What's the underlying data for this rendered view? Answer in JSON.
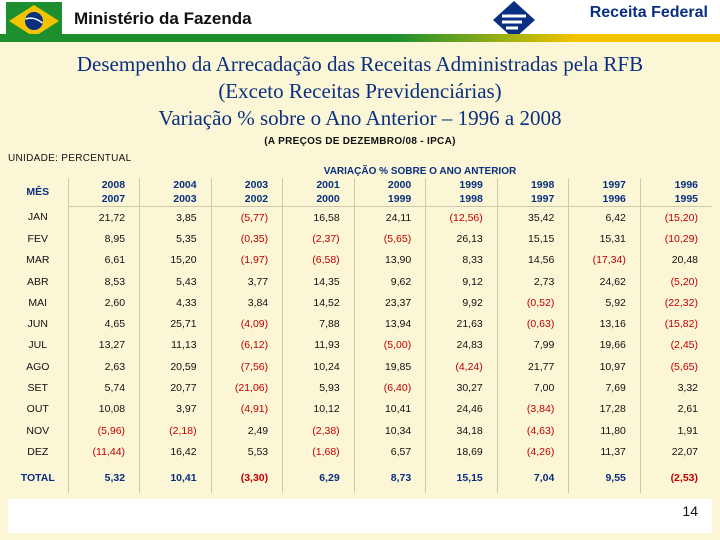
{
  "header": {
    "left_title": "Ministério da Fazenda",
    "right_title": "Receita Federal",
    "colors": {
      "green": "#1d8f2f",
      "yellow": "#f2c400",
      "blue": "#0a2f80"
    }
  },
  "title": {
    "line1": "Desempenho da Arrecadação das Receitas Administradas pela RFB",
    "line2": "(Exceto Receitas Previdenciárias)",
    "line3": "Variação % sobre o Ano Anterior – 1996 a 2008"
  },
  "note": "(A PREÇOS DE DEZEMBRO/08 - IPCA)",
  "unit_label": "UNIDADE: PERCENTUAL",
  "table": {
    "variation_header": "VARIAÇÃO % SOBRE O ANO ANTERIOR",
    "month_header": "MÊS",
    "columns": [
      {
        "top": "2008",
        "bottom": "2007"
      },
      {
        "top": "2004",
        "bottom": "2003"
      },
      {
        "top": "2003",
        "bottom": "2002"
      },
      {
        "top": "2001",
        "bottom": "2000"
      },
      {
        "top": "2000",
        "bottom": "1999"
      },
      {
        "top": "1999",
        "bottom": "1998"
      },
      {
        "top": "1998",
        "bottom": "1997"
      },
      {
        "top": "1997",
        "bottom": "1996"
      },
      {
        "top": "1996",
        "bottom": "1995"
      }
    ],
    "rows": [
      {
        "month": "JAN",
        "values": [
          "21,72",
          "3,85",
          "(5,77)",
          "16,58",
          "24,11",
          "(12,56)",
          "35,42",
          "6,42",
          "(15,20)"
        ]
      },
      {
        "month": "FEV",
        "values": [
          "8,95",
          "5,35",
          "(0,35)",
          "(2,37)",
          "(5,65)",
          "26,13",
          "15,15",
          "15,31",
          "(10,29)"
        ]
      },
      {
        "month": "MAR",
        "values": [
          "6,61",
          "15,20",
          "(1,97)",
          "(6,58)",
          "13,90",
          "8,33",
          "14,56",
          "(17,34)",
          "20,48"
        ]
      },
      {
        "month": "ABR",
        "values": [
          "8,53",
          "5,43",
          "3,77",
          "14,35",
          "9,62",
          "9,12",
          "2,73",
          "24,62",
          "(5,20)"
        ]
      },
      {
        "month": "MAI",
        "values": [
          "2,60",
          "4,33",
          "3,84",
          "14,52",
          "23,37",
          "9,92",
          "(0,52)",
          "5,92",
          "(22,32)"
        ]
      },
      {
        "month": "JUN",
        "values": [
          "4,65",
          "25,71",
          "(4,09)",
          "7,88",
          "13,94",
          "21,63",
          "(0,63)",
          "13,16",
          "(15,82)"
        ]
      },
      {
        "month": "JUL",
        "values": [
          "13,27",
          "11,13",
          "(6,12)",
          "11,93",
          "(5,00)",
          "24,83",
          "7,99",
          "19,66",
          "(2,45)"
        ]
      },
      {
        "month": "AGO",
        "values": [
          "2,63",
          "20,59",
          "(7,56)",
          "10,24",
          "19,85",
          "(4,24)",
          "21,77",
          "10,97",
          "(5,65)"
        ]
      },
      {
        "month": "SET",
        "values": [
          "5,74",
          "20,77",
          "(21,06)",
          "5,93",
          "(6,40)",
          "30,27",
          "7,00",
          "7,69",
          "3,32"
        ]
      },
      {
        "month": "OUT",
        "values": [
          "10,08",
          "3,97",
          "(4,91)",
          "10,12",
          "10,41",
          "24,46",
          "(3,84)",
          "17,28",
          "2,61"
        ]
      },
      {
        "month": "NOV",
        "values": [
          "(5,96)",
          "(2,18)",
          "2,49",
          "(2,38)",
          "10,34",
          "34,18",
          "(4,63)",
          "11,80",
          "1,91"
        ]
      },
      {
        "month": "DEZ",
        "values": [
          "(11,44)",
          "16,42",
          "5,53",
          "(1,68)",
          "6,57",
          "18,69",
          "(4,26)",
          "11,37",
          "22,07"
        ]
      }
    ],
    "total": {
      "label": "TOTAL",
      "values": [
        "5,32",
        "10,41",
        "(3,30)",
        "6,29",
        "8,73",
        "15,15",
        "7,04",
        "9,55",
        "(2,53)"
      ]
    }
  },
  "page_number": "14"
}
